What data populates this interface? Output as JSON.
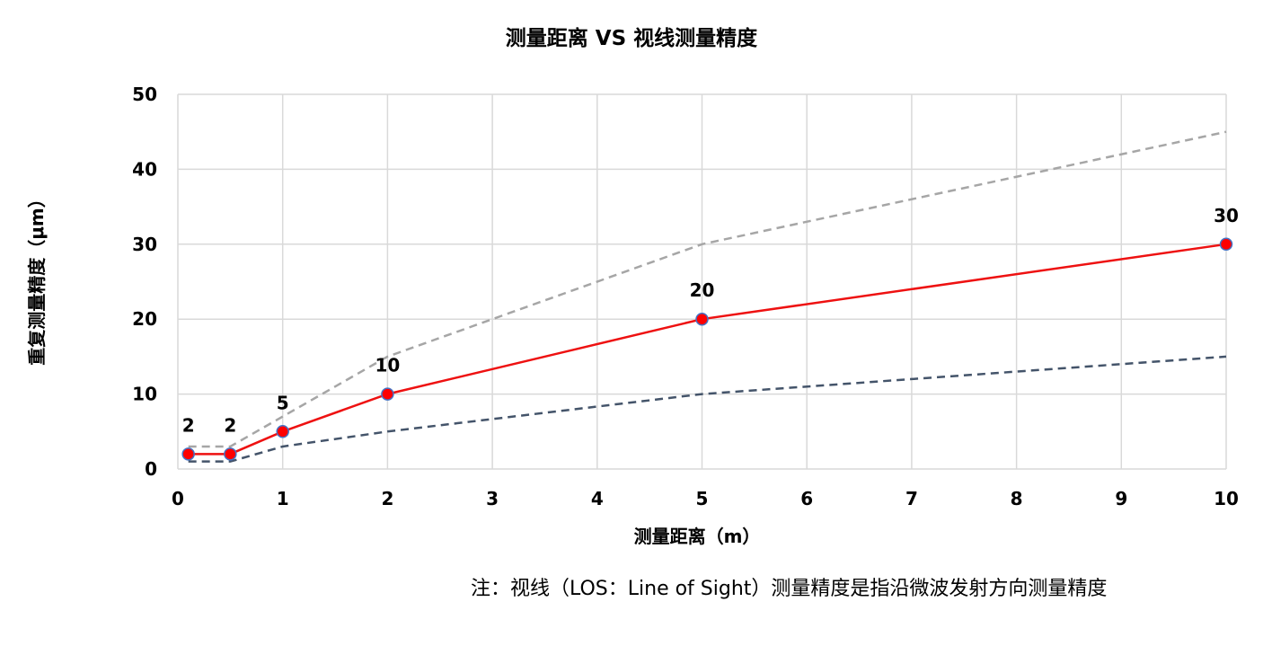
{
  "chart_data": {
    "type": "line",
    "title": "测量距离 VS 视线测量精度",
    "xlabel": "测量距离（m）",
    "ylabel": "重复测量精度（μm）",
    "x_tick_labels": [
      "0",
      "1",
      "2",
      "3",
      "4",
      "5",
      "6",
      "7",
      "8",
      "9",
      "10"
    ],
    "y_ticks": [
      0,
      10,
      20,
      30,
      40,
      50
    ],
    "ylim": [
      0,
      50
    ],
    "grid": true,
    "series": [
      {
        "x": [
          "0.1",
          "0.5",
          "1",
          "2",
          "5",
          "10"
        ],
        "values": [
          2,
          2,
          5,
          10,
          20,
          30
        ],
        "data_labels": [
          "2",
          "2",
          "5",
          "10",
          "20",
          "30"
        ],
        "color": "#ee1111",
        "style": "solid",
        "markers": true
      },
      {
        "x": [
          "0.1",
          "0.5",
          "1",
          "2",
          "5",
          "10"
        ],
        "values": [
          3,
          3,
          7,
          15,
          30,
          45
        ],
        "color": "#a6a6a6",
        "style": "dashed"
      },
      {
        "x": [
          "0.1",
          "0.5",
          "1",
          "2",
          "5",
          "10"
        ],
        "values": [
          1,
          1,
          3,
          5,
          10,
          15
        ],
        "color": "#44546a",
        "style": "dashed"
      }
    ]
  },
  "note": "注：视线（LOS：Line of Sight）测量精度是指沿微波发射方向测量精度",
  "colors": {
    "grid": "#d9d9d9",
    "marker_fill": "#ff0000",
    "marker_stroke": "#4472c4"
  }
}
